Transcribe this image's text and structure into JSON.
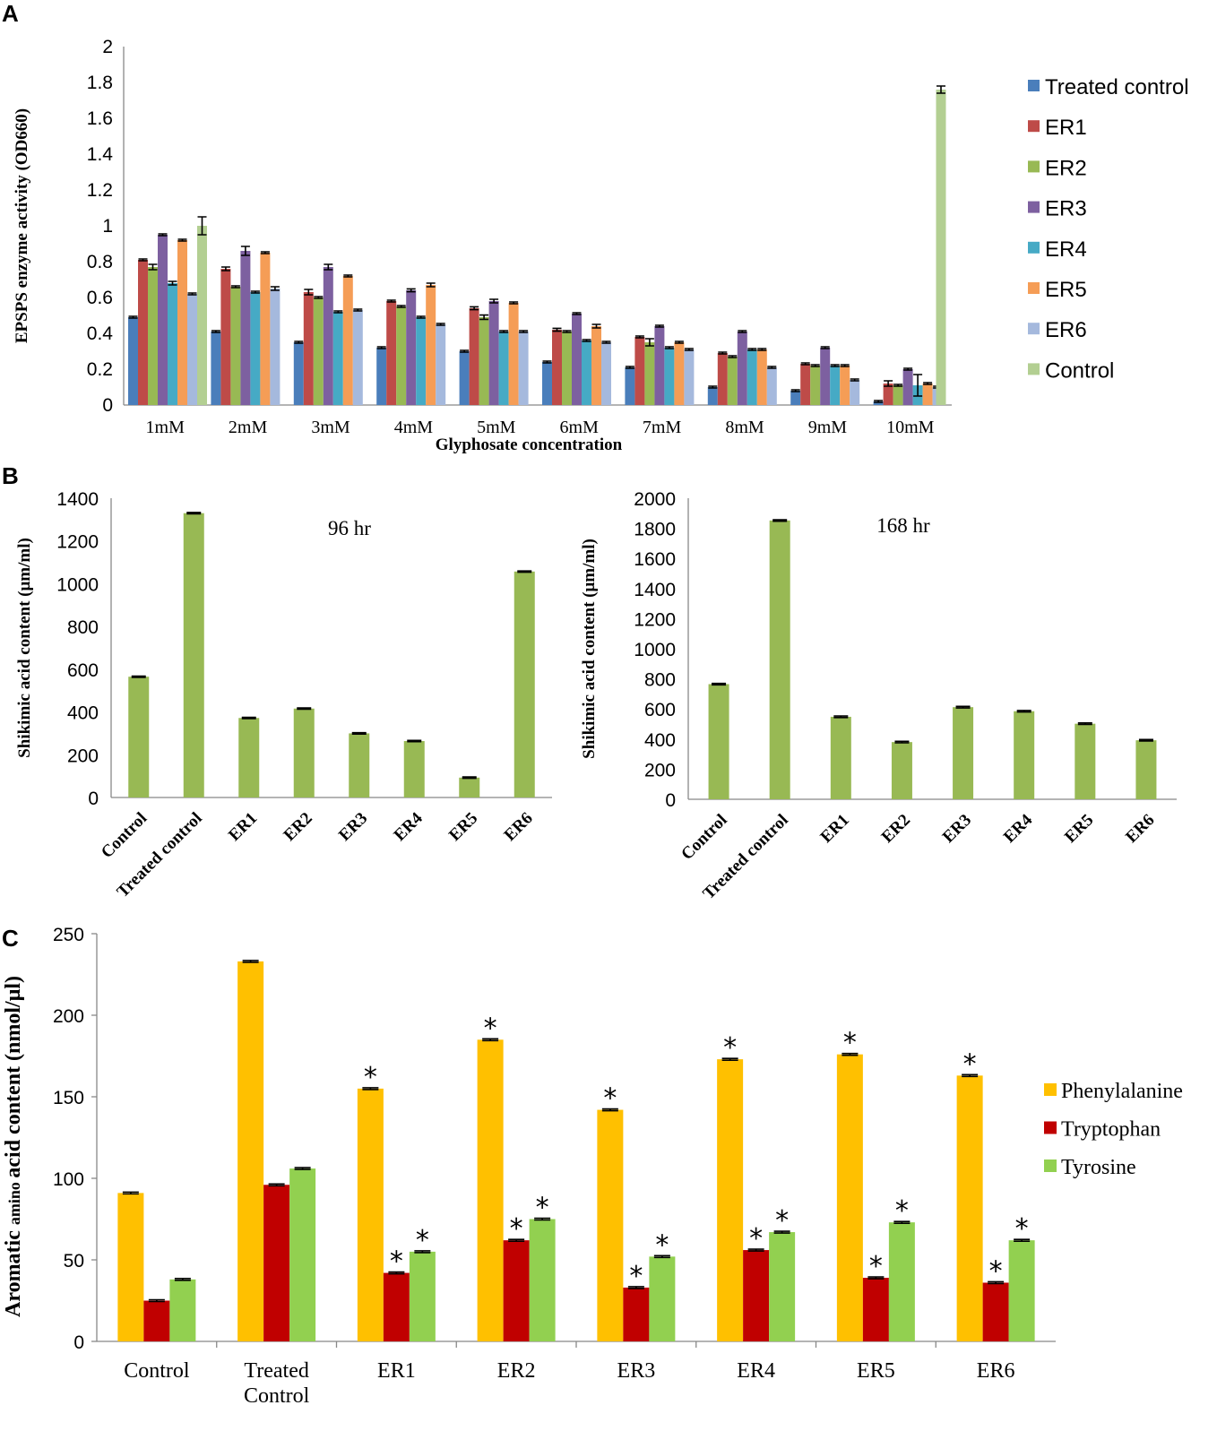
{
  "chart_data": [
    {
      "panel": "A",
      "type": "bar",
      "title": "",
      "xlabel": "Glyphosate concentration",
      "ylabel": "EPSPS enzyme activity (OD660)",
      "ylim": [
        0,
        2
      ],
      "yticks": [
        "0",
        "0.2",
        "0.4",
        "0.6",
        "0.8",
        "1",
        "1.2",
        "1.4",
        "1.6",
        "1.8",
        "2"
      ],
      "categories": [
        "1mM",
        "2mM",
        "3mM",
        "4mM",
        "5mM",
        "6mM",
        "7mM",
        "8mM",
        "9mM",
        "10mM"
      ],
      "series": [
        {
          "name": "Treated control",
          "color": "#4A7EBB",
          "values": [
            0.49,
            0.41,
            0.35,
            0.32,
            0.3,
            0.24,
            0.21,
            0.1,
            0.08,
            0.02
          ],
          "errors": [
            0.005,
            0.005,
            0.005,
            0.005,
            0.005,
            0.005,
            0.005,
            0.005,
            0.005,
            0.005
          ]
        },
        {
          "name": "ER1",
          "color": "#BE4B48",
          "values": [
            0.81,
            0.76,
            0.63,
            0.58,
            0.54,
            0.42,
            0.38,
            0.29,
            0.23,
            0.12
          ],
          "errors": [
            0.005,
            0.01,
            0.015,
            0.005,
            0.008,
            0.008,
            0.005,
            0.005,
            0.005,
            0.015
          ]
        },
        {
          "name": "ER2",
          "color": "#98B954",
          "values": [
            0.77,
            0.66,
            0.6,
            0.55,
            0.49,
            0.41,
            0.35,
            0.27,
            0.22,
            0.11
          ],
          "errors": [
            0.015,
            0.005,
            0.005,
            0.005,
            0.012,
            0.005,
            0.02,
            0.005,
            0.005,
            0.005
          ]
        },
        {
          "name": "ER3",
          "color": "#7D60A0",
          "values": [
            0.95,
            0.86,
            0.77,
            0.64,
            0.58,
            0.51,
            0.44,
            0.41,
            0.32,
            0.2
          ],
          "errors": [
            0.005,
            0.025,
            0.015,
            0.008,
            0.01,
            0.005,
            0.005,
            0.005,
            0.005,
            0.005
          ]
        },
        {
          "name": "ER4",
          "color": "#46AAC5",
          "values": [
            0.68,
            0.63,
            0.52,
            0.49,
            0.41,
            0.36,
            0.32,
            0.31,
            0.22,
            0.11
          ],
          "errors": [
            0.01,
            0.005,
            0.005,
            0.005,
            0.005,
            0.005,
            0.005,
            0.005,
            0.005,
            0.06
          ]
        },
        {
          "name": "ER5",
          "color": "#F59D56",
          "values": [
            0.92,
            0.85,
            0.72,
            0.67,
            0.57,
            0.44,
            0.35,
            0.31,
            0.22,
            0.12
          ],
          "errors": [
            0.005,
            0.005,
            0.005,
            0.01,
            0.005,
            0.01,
            0.005,
            0.005,
            0.005,
            0.005
          ]
        },
        {
          "name": "ER6",
          "color": "#A5B9DD",
          "values": [
            0.62,
            0.65,
            0.53,
            0.45,
            0.41,
            0.35,
            0.31,
            0.21,
            0.14,
            0.1
          ],
          "errors": [
            0.005,
            0.01,
            0.005,
            0.005,
            0.005,
            0.005,
            0.005,
            0.005,
            0.005,
            0.005
          ]
        },
        {
          "name": "Control",
          "color": "#B3CF92",
          "values": [
            1.0,
            null,
            null,
            null,
            null,
            null,
            null,
            null,
            null,
            1.76
          ],
          "errors": [
            0.05,
            0,
            0,
            0,
            0,
            0,
            0,
            0,
            0,
            0.02
          ]
        }
      ]
    },
    {
      "panel": "B",
      "type": "bar",
      "title": "96 hr",
      "xlabel": "",
      "ylabel": "Shikimic acid content (μm/ml)",
      "ylim": [
        0,
        1400
      ],
      "yticks": [
        "0",
        "200",
        "400",
        "600",
        "800",
        "1000",
        "1200",
        "1400"
      ],
      "categories": [
        "Control",
        "Treated control",
        "ER1",
        "ER2",
        "ER3",
        "ER4",
        "ER5",
        "ER6"
      ],
      "series": [
        {
          "name": "Shikimic acid",
          "color": "#98B954",
          "values": [
            565,
            1330,
            372,
            416,
            300,
            264,
            93,
            1057
          ],
          "errors": [
            3,
            3,
            3,
            3,
            3,
            3,
            3,
            3
          ]
        }
      ]
    },
    {
      "panel": "B",
      "type": "bar",
      "title": "168 hr",
      "xlabel": "",
      "ylabel": "Shikimic acid content (μm/ml)",
      "ylim": [
        0,
        2000
      ],
      "yticks": [
        "0",
        "200",
        "400",
        "600",
        "800",
        "1000",
        "1200",
        "1400",
        "1600",
        "1800",
        "2000"
      ],
      "categories": [
        "Control",
        "Treated control",
        "ER1",
        "ER2",
        "ER3",
        "ER4",
        "ER5",
        "ER6"
      ],
      "series": [
        {
          "name": "Shikimic acid",
          "color": "#98B954",
          "values": [
            765,
            1852,
            548,
            380,
            612,
            585,
            502,
            392
          ],
          "errors": [
            5,
            5,
            5,
            5,
            5,
            5,
            5,
            5
          ]
        }
      ]
    },
    {
      "panel": "C",
      "type": "bar",
      "title": "",
      "xlabel": "",
      "ylabel": "Aromatic amino acid content (nmol/μl)",
      "ylim": [
        0,
        250
      ],
      "yticks": [
        "0",
        "50",
        "100",
        "150",
        "200",
        "250"
      ],
      "categories": [
        "Control",
        "Treated Control",
        "ER1",
        "ER2",
        "ER3",
        "ER4",
        "ER5",
        "ER6"
      ],
      "annotation": "*",
      "series": [
        {
          "name": "Phenylalanine",
          "color": "#FFC000",
          "values": [
            91,
            233,
            155,
            185,
            142,
            173,
            176,
            163
          ],
          "errors": [
            0.5,
            0.5,
            0.5,
            0.5,
            0.5,
            0.5,
            0.5,
            0.5
          ],
          "significant": [
            false,
            false,
            true,
            true,
            true,
            true,
            true,
            true
          ]
        },
        {
          "name": "Tryptophan",
          "color": "#C00000",
          "values": [
            25,
            96,
            42,
            62,
            33,
            56,
            39,
            36
          ],
          "errors": [
            0.5,
            0.5,
            0.5,
            0.5,
            0.5,
            0.5,
            0.5,
            0.5
          ],
          "significant": [
            false,
            false,
            true,
            true,
            true,
            true,
            true,
            true
          ]
        },
        {
          "name": "Tyrosine",
          "color": "#92D050",
          "values": [
            38,
            106,
            55,
            75,
            52,
            67,
            73,
            62
          ],
          "errors": [
            0.5,
            0.5,
            0.5,
            0.5,
            0.5,
            0.5,
            0.5,
            0.5
          ],
          "significant": [
            false,
            false,
            true,
            true,
            true,
            true,
            true,
            true
          ]
        }
      ]
    }
  ],
  "panels": {
    "a_letter": "A",
    "b_letter": "B",
    "c_letter": "C",
    "c_ylabel_part1": "Aromatic",
    "c_ylabel_part2": "amino",
    "c_ylabel_part3": "acid content (nmol/μl)"
  }
}
